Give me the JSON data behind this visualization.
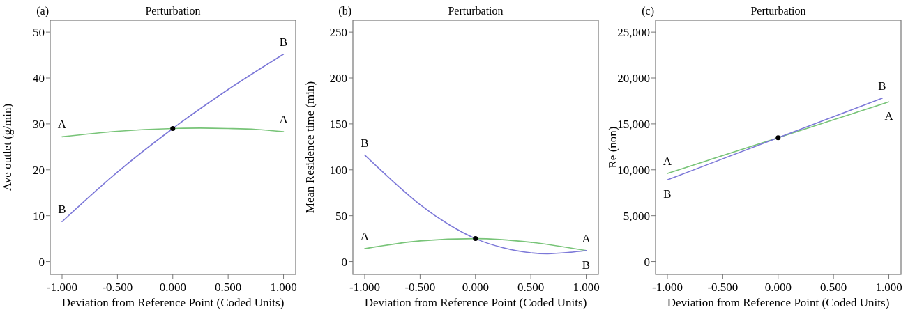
{
  "chart_data": [
    {
      "type": "line",
      "title": "Perturbation",
      "annotations": [
        "(a)"
      ],
      "xlabel": "Deviation from Reference Point (Coded Units)",
      "ylabel": "Ave outlet (g/min)",
      "xlim": [
        -1.107,
        1.11
      ],
      "ylim": [
        -2.8,
        52.6
      ],
      "xticks": [
        {
          "value": -1,
          "label": "-1.000"
        },
        {
          "value": -0.5,
          "label": "-0.500"
        },
        {
          "value": 0,
          "label": "0.000"
        },
        {
          "value": 0.5,
          "label": "0.500"
        },
        {
          "value": 1,
          "label": "1.000"
        }
      ],
      "yticks": [
        0,
        10,
        20,
        30,
        40,
        50
      ],
      "series": [
        {
          "name": "A",
          "color": "#78c478",
          "x": [
            -1,
            -0.5,
            0,
            0.25,
            0.5,
            0.75,
            1
          ],
          "values": [
            27.2,
            28.4,
            29,
            29.1,
            29,
            28.8,
            28.3
          ]
        },
        {
          "name": "B",
          "color": "#7c78d8",
          "x": [
            -1,
            -0.5,
            0,
            0.5,
            1
          ],
          "values": [
            8.7,
            19.5,
            29,
            37.5,
            45.2
          ]
        },
        {
          "type": "scatter",
          "color": "#000000",
          "x": [
            0
          ],
          "values": [
            29
          ]
        }
      ]
    },
    {
      "type": "line",
      "title": "Perturbation",
      "annotations": [
        "(b)"
      ],
      "xlabel": "Deviation from Reference Point (Coded Units)",
      "ylabel": "Mean Residence time (min)",
      "xlim": [
        -1.107,
        1.11
      ],
      "ylim": [
        -14,
        263
      ],
      "xticks": [
        {
          "value": -1,
          "label": "-1.000"
        },
        {
          "value": -0.5,
          "label": "-0.500"
        },
        {
          "value": 0,
          "label": "0.000"
        },
        {
          "value": 0.5,
          "label": "0.500"
        },
        {
          "value": 1,
          "label": "1.000"
        }
      ],
      "yticks": [
        0,
        50,
        100,
        150,
        200,
        250
      ],
      "series": [
        {
          "name": "A",
          "color": "#78c478",
          "x": [
            -1,
            -0.5,
            0,
            0.5,
            1
          ],
          "values": [
            14,
            22.5,
            25,
            21,
            12
          ]
        },
        {
          "name": "B",
          "color": "#7c78d8",
          "x": [
            -1,
            -0.75,
            -0.5,
            -0.25,
            0,
            0.25,
            0.5,
            0.65,
            0.85,
            1
          ],
          "values": [
            116,
            88,
            62,
            41,
            25,
            15,
            9.5,
            8.5,
            10,
            12
          ]
        },
        {
          "type": "scatter",
          "color": "#000000",
          "x": [
            0
          ],
          "values": [
            25
          ]
        }
      ]
    },
    {
      "type": "line",
      "title": "Perturbation",
      "annotations": [
        "(c)"
      ],
      "xlabel": "Deviation from Reference Point (Coded Units)",
      "ylabel": "Re (non)",
      "xlim": [
        -1.107,
        1.11
      ],
      "ylim": [
        -1400,
        26300
      ],
      "xticks": [
        {
          "value": -1,
          "label": "-1.000"
        },
        {
          "value": -0.5,
          "label": "-0.500"
        },
        {
          "value": 0,
          "label": "0.000"
        },
        {
          "value": 0.5,
          "label": "0.500"
        },
        {
          "value": 1,
          "label": "1.000"
        }
      ],
      "yticks": [
        {
          "value": 0,
          "label": "0"
        },
        {
          "value": 5000,
          "label": "5,000"
        },
        {
          "value": 10000,
          "label": "10,000"
        },
        {
          "value": 15000,
          "label": "15,000"
        },
        {
          "value": 20000,
          "label": "20,000"
        },
        {
          "value": 25000,
          "label": "25,000"
        }
      ],
      "series": [
        {
          "name": "A",
          "color": "#78c478",
          "x": [
            -1,
            0,
            1
          ],
          "values": [
            9600,
            13500,
            17400
          ]
        },
        {
          "name": "B",
          "color": "#7c78d8",
          "x": [
            -1,
            0,
            0.94
          ],
          "values": [
            8900,
            13500,
            17800
          ]
        },
        {
          "type": "scatter",
          "color": "#000000",
          "x": [
            0
          ],
          "values": [
            13500
          ]
        }
      ]
    }
  ]
}
